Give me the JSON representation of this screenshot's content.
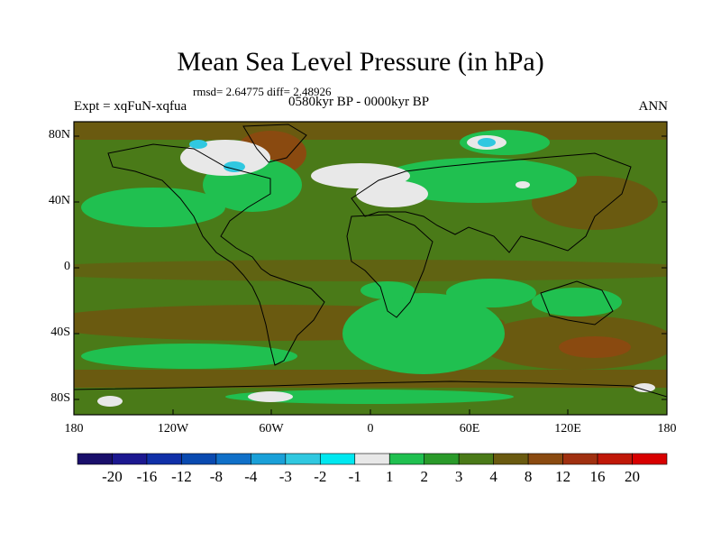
{
  "title": "Mean Sea Level Pressure (in hPa)",
  "stats": "rmsd= 2.64775 diff= 2.48926",
  "experiment": "Expt = xqFuN-xqfua",
  "period": "0580kyr BP - 0000kyr BP",
  "season": "ANN",
  "lat_labels": [
    "80N",
    "40N",
    "0",
    "40S",
    "80S"
  ],
  "lon_labels": [
    "180",
    "120W",
    "60W",
    "0",
    "60E",
    "120E",
    "180"
  ],
  "colorbar": {
    "labels": [
      "-20",
      "-16",
      "-12",
      "-8",
      "-4",
      "-3",
      "-2",
      "-1",
      "1",
      "2",
      "3",
      "4",
      "8",
      "12",
      "16",
      "20"
    ],
    "colors": [
      "#1a0f6b",
      "#1c1890",
      "#1030a8",
      "#0a4ab0",
      "#1070c8",
      "#1aa0d8",
      "#30c8e0",
      "#00e8f0",
      "#e8e8e8",
      "#20c050",
      "#2a9a2a",
      "#4a7a18",
      "#6a5a10",
      "#8a4a10",
      "#a03010",
      "#c01808",
      "#d80000"
    ]
  },
  "colors": {
    "land_ocean_base": "#4a7a18",
    "light_green": "#20c050",
    "brown": "#6a5a10",
    "dark_brown": "#8a4a10",
    "white": "#e8e8e8",
    "cyan": "#30c8e0"
  }
}
